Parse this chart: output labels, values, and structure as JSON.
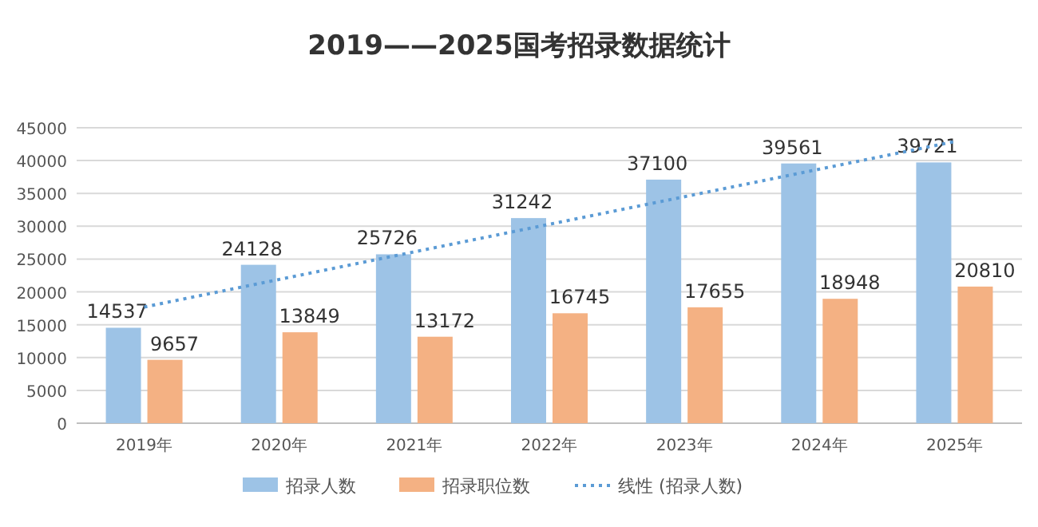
{
  "chart_data": {
    "type": "bar",
    "title": "2019——2025国考招录数据统计",
    "categories": [
      "2019年",
      "2020年",
      "2021年",
      "2022年",
      "2023年",
      "2024年",
      "2025年"
    ],
    "series": [
      {
        "name": "招录人数",
        "color": "#9dc3e6",
        "values": [
          14537,
          24128,
          25726,
          31242,
          37100,
          39561,
          39721
        ],
        "value_labels": [
          "14537",
          "24128",
          "25726",
          "31242",
          "37100",
          "39561",
          "39721"
        ]
      },
      {
        "name": "招录职位数",
        "color": "#f4b183",
        "values": [
          9657,
          13849,
          13172,
          16745,
          17655,
          18948,
          20810
        ],
        "value_labels": [
          "9657",
          "13849",
          "13172",
          "16745",
          "17655",
          "18948",
          "20810"
        ]
      },
      {
        "name": "线性 (招录人数)",
        "type": "line",
        "line_style": "dotted",
        "color": "#5b9bd5",
        "x": [
          "2019年",
          "2025年"
        ],
        "values": [
          17700,
          42900
        ]
      }
    ],
    "ylim": [
      0,
      45000
    ],
    "yticks": [
      0,
      5000,
      10000,
      15000,
      20000,
      25000,
      30000,
      35000,
      40000,
      45000
    ],
    "grid": "y",
    "legend": "bottom"
  }
}
